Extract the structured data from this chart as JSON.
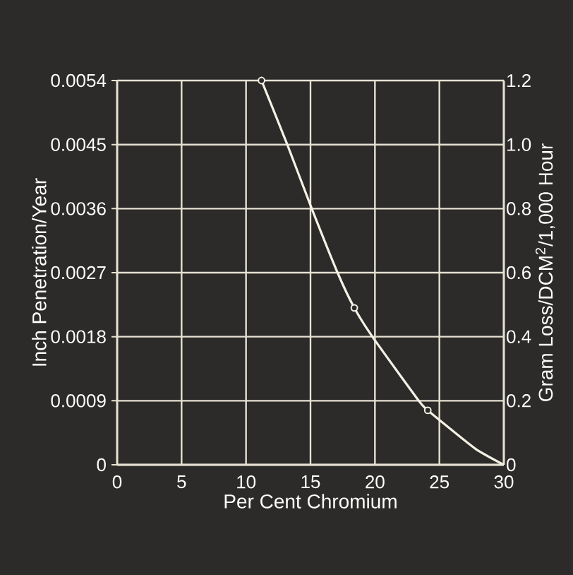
{
  "chart_data": {
    "type": "line",
    "xlabel": "Per Cent Chromium",
    "ylabel": "Inch Penetration/Year",
    "y2label": "Gram Loss/DCM$^{2}$/1,000 Hour",
    "xlim": [
      0,
      30
    ],
    "xticks": [
      0,
      5,
      10,
      15,
      20,
      25,
      30
    ],
    "ylim": [
      0,
      0.0054
    ],
    "yticks": [
      0,
      0.0009,
      0.0018,
      0.0027,
      0.0036,
      0.0045,
      0.0054
    ],
    "y2lim": [
      0,
      1.2
    ],
    "y2ticks": [
      0,
      0.2,
      0.4,
      0.6,
      0.8,
      {
        "value": 1,
        "label": "1.0"
      },
      1.2
    ],
    "grid": true,
    "series": [
      {
        "axis": "y2",
        "color": "#f4f1e4",
        "marker": "none",
        "line_style": "solid",
        "x": [
          11.2,
          13.2,
          15.1,
          17.1,
          18.4,
          19.8,
          23.4,
          24.1,
          25.0,
          27.8,
          30
        ],
        "values": [
          1.2,
          1.0,
          0.8,
          0.6,
          0.49,
          0.4,
          0.2,
          0.17,
          0.14,
          0.05,
          0
        ]
      },
      {
        "type": "scatter",
        "axis": "y2",
        "color": "#f4f1e4",
        "marker": "circle",
        "x": [
          11.2,
          18.4,
          24.1
        ],
        "values": [
          1.2,
          0.49,
          0.17
        ]
      }
    ]
  }
}
